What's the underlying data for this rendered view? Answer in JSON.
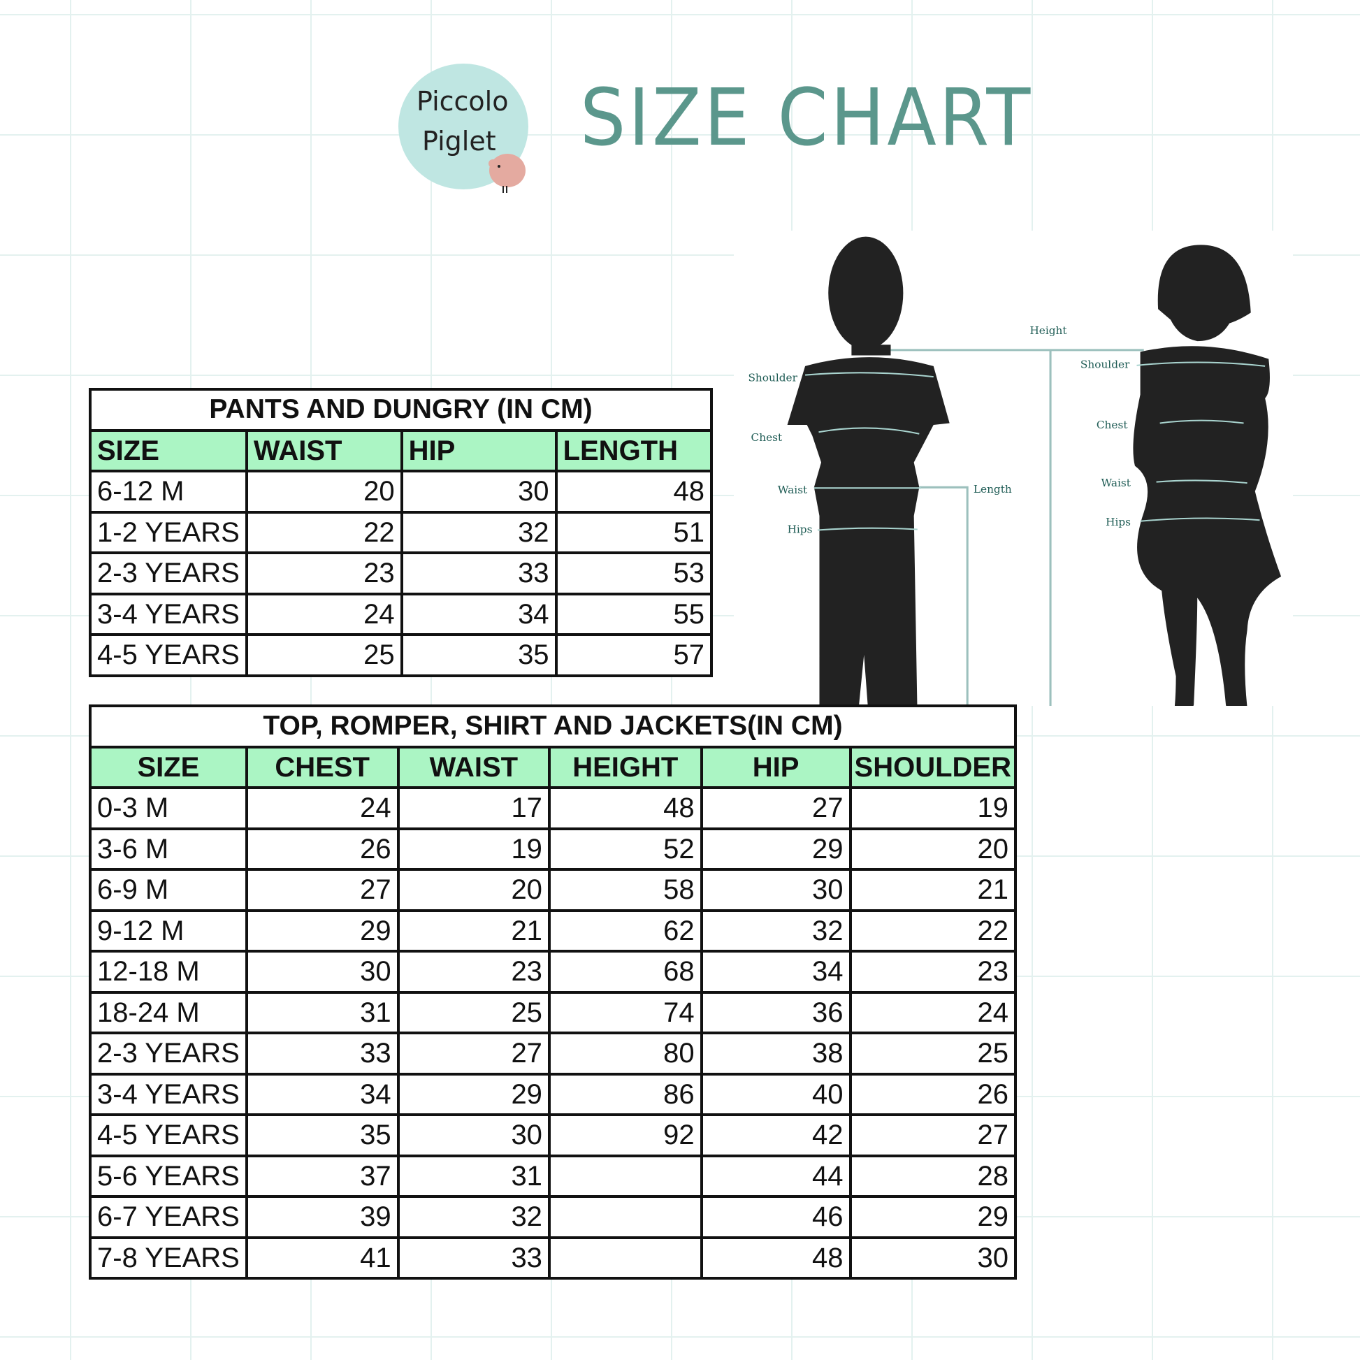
{
  "brand": {
    "logo_text": "Piccolo Piglet",
    "title": "SIZE CHART",
    "accent": "#5b978c",
    "header_fill": "#abf5c4"
  },
  "figure": {
    "labels": {
      "height": "Height",
      "length": "Length",
      "boy_shoulder": "Shoulder",
      "boy_chest": "Chest",
      "boy_waist": "Waist",
      "boy_hips": "Hips",
      "girl_shoulder": "Shoulder",
      "girl_chest": "Chest",
      "girl_waist": "Waist",
      "girl_hips": "Hips"
    }
  },
  "pants": {
    "title": "PANTS AND DUNGRY (IN CM)",
    "headers": [
      "SIZE",
      "WAIST",
      "HIP",
      "LENGTH"
    ],
    "rows": [
      [
        "6-12 M",
        "20",
        "30",
        "48"
      ],
      [
        "1-2 YEARS",
        "22",
        "32",
        "51"
      ],
      [
        "2-3 YEARS",
        "23",
        "33",
        "53"
      ],
      [
        "3-4 YEARS",
        "24",
        "34",
        "55"
      ],
      [
        "4-5 YEARS",
        "25",
        "35",
        "57"
      ]
    ]
  },
  "tops": {
    "title": "TOP, ROMPER, SHIRT AND JACKETS(IN CM)",
    "headers": [
      "SIZE",
      "CHEST",
      "WAIST",
      "HEIGHT",
      "HIP",
      "SHOULDER"
    ],
    "rows": [
      [
        "0-3 M",
        "24",
        "17",
        "48",
        "27",
        "19"
      ],
      [
        "3-6 M",
        "26",
        "19",
        "52",
        "29",
        "20"
      ],
      [
        "6-9 M",
        "27",
        "20",
        "58",
        "30",
        "21"
      ],
      [
        "9-12 M",
        "29",
        "21",
        "62",
        "32",
        "22"
      ],
      [
        "12-18 M",
        "30",
        "23",
        "68",
        "34",
        "23"
      ],
      [
        "18-24 M",
        "31",
        "25",
        "74",
        "36",
        "24"
      ],
      [
        "2-3 YEARS",
        "33",
        "27",
        "80",
        "38",
        "25"
      ],
      [
        "3-4 YEARS",
        "34",
        "29",
        "86",
        "40",
        "26"
      ],
      [
        "4-5 YEARS",
        "35",
        "30",
        "92",
        "42",
        "27"
      ],
      [
        "5-6 YEARS",
        "37",
        "31",
        "",
        "44",
        "28"
      ],
      [
        "6-7 YEARS",
        "39",
        "32",
        "",
        "46",
        "29"
      ],
      [
        "7-8 YEARS",
        "41",
        "33",
        "",
        "48",
        "30"
      ]
    ]
  }
}
